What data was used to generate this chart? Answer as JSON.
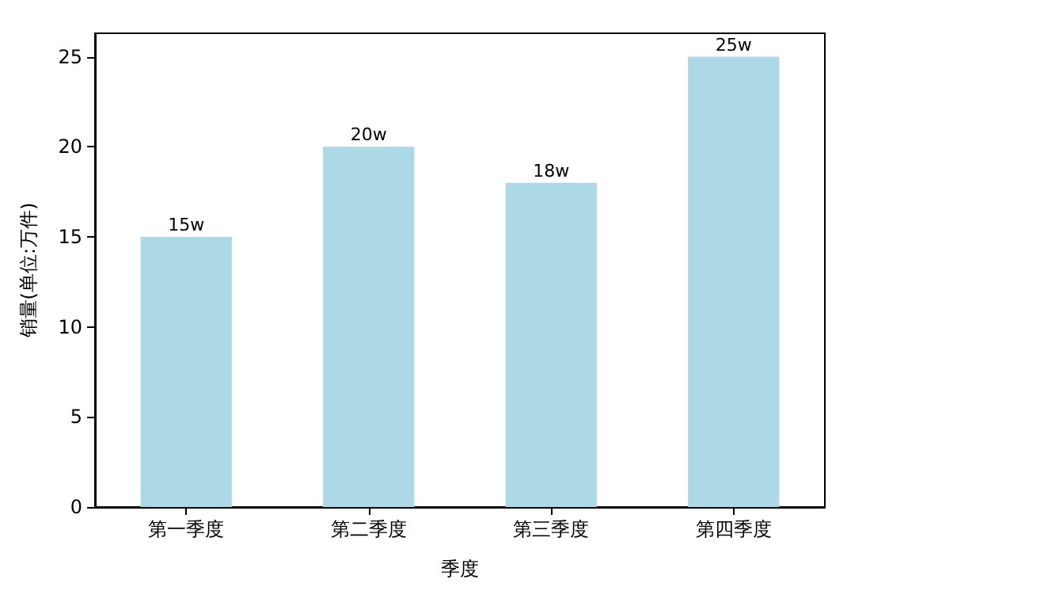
{
  "chart_data": {
    "type": "bar",
    "xlabel": "季度",
    "ylabel": "销量(单位:万件)",
    "categories": [
      "第一季度",
      "第二季度",
      "第三季度",
      "第四季度"
    ],
    "values": [
      15,
      20,
      18,
      25
    ],
    "color": "#add8e6",
    "value_labels": [
      "15w",
      "20w",
      "18w",
      "25w"
    ],
    "ylim": [
      0,
      26.3
    ],
    "yticks": [
      0,
      5,
      10,
      15,
      20,
      25
    ],
    "grid": false
  }
}
